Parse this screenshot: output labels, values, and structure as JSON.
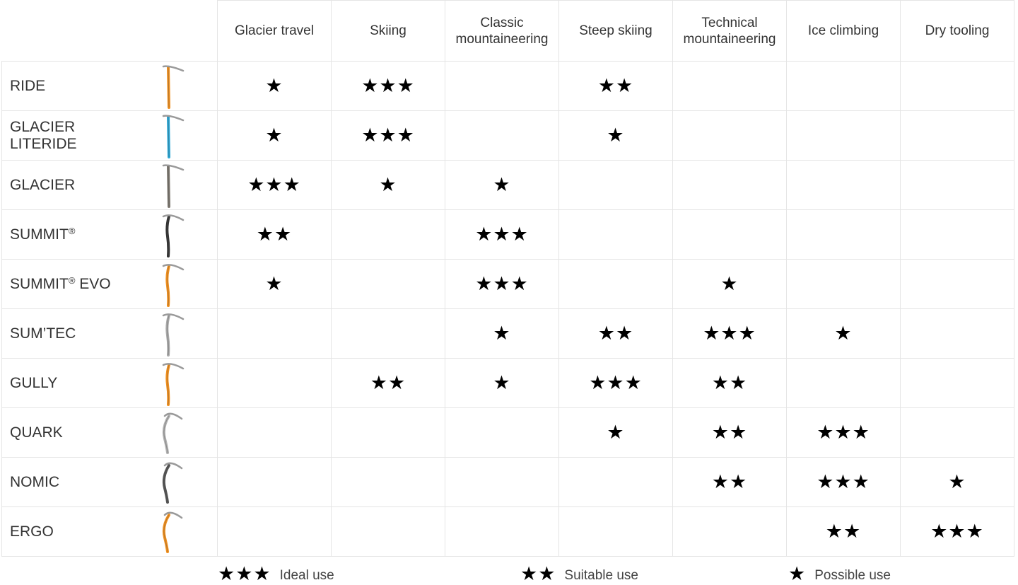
{
  "columns": [
    "Glacier travel",
    "Skiing",
    "Classic\nmountaineering",
    "Steep skiing",
    "Technical\nmountaineering",
    "Ice climbing",
    "Dry tooling"
  ],
  "star_glyph": "★",
  "rows": [
    {
      "name": "RIDE",
      "trademark": "",
      "suffix": "",
      "icon": "ice-axe-ride-icon",
      "shaft": "straight",
      "color": "#f0901f",
      "ratings": [
        1,
        3,
        0,
        2,
        0,
        0,
        0
      ],
      "ratings_text": [
        "★",
        "★★★",
        "",
        "★★",
        "",
        "",
        ""
      ]
    },
    {
      "name": "GLACIER\nLITERIDE",
      "trademark": "",
      "suffix": "",
      "icon": "ice-axe-glacier-literide-icon",
      "shaft": "straight",
      "color": "#2aa7d6",
      "ratings": [
        1,
        3,
        0,
        1,
        0,
        0,
        0
      ],
      "ratings_text": [
        "★",
        "★★★",
        "",
        "★",
        "",
        "",
        ""
      ]
    },
    {
      "name": "GLACIER",
      "trademark": "",
      "suffix": "",
      "icon": "ice-axe-glacier-icon",
      "shaft": "straight",
      "color": "#7d7870",
      "ratings": [
        3,
        1,
        1,
        0,
        0,
        0,
        0
      ],
      "ratings_text": [
        "★★★",
        "★",
        "★",
        "",
        "",
        "",
        ""
      ]
    },
    {
      "name": "SUMMIT",
      "trademark": "®",
      "suffix": "",
      "icon": "ice-axe-summit-icon",
      "shaft": "bent",
      "color": "#333333",
      "ratings": [
        2,
        0,
        3,
        0,
        0,
        0,
        0
      ],
      "ratings_text": [
        "★★",
        "",
        "★★★",
        "",
        "",
        "",
        ""
      ]
    },
    {
      "name": "SUMMIT",
      "trademark": "®",
      "suffix": " EVO",
      "icon": "ice-axe-summit-evo-icon",
      "shaft": "bent",
      "color": "#f0901f",
      "ratings": [
        1,
        0,
        3,
        0,
        1,
        0,
        0
      ],
      "ratings_text": [
        "★",
        "",
        "★★★",
        "",
        "★",
        "",
        ""
      ]
    },
    {
      "name": "SUM’TEC",
      "trademark": "",
      "suffix": "",
      "icon": "ice-axe-sumtec-icon",
      "shaft": "bent",
      "color": "#a9a9a9",
      "ratings": [
        0,
        0,
        1,
        2,
        3,
        1,
        0
      ],
      "ratings_text": [
        "",
        "",
        "★",
        "★★",
        "★★★",
        "★",
        ""
      ]
    },
    {
      "name": "GULLY",
      "trademark": "",
      "suffix": "",
      "icon": "ice-axe-gully-icon",
      "shaft": "bent",
      "color": "#f0901f",
      "ratings": [
        0,
        2,
        1,
        3,
        2,
        0,
        0
      ],
      "ratings_text": [
        "",
        "★★",
        "★",
        "★★★",
        "★★",
        "",
        ""
      ]
    },
    {
      "name": "QUARK",
      "trademark": "",
      "suffix": "",
      "icon": "ice-axe-quark-icon",
      "shaft": "curved",
      "color": "#b0b0b0",
      "ratings": [
        0,
        0,
        0,
        1,
        2,
        3,
        0
      ],
      "ratings_text": [
        "",
        "",
        "",
        "★",
        "★★",
        "★★★",
        ""
      ]
    },
    {
      "name": "NOMIC",
      "trademark": "",
      "suffix": "",
      "icon": "ice-axe-nomic-icon",
      "shaft": "curved",
      "color": "#555555",
      "ratings": [
        0,
        0,
        0,
        0,
        2,
        3,
        1
      ],
      "ratings_text": [
        "",
        "",
        "",
        "",
        "★★",
        "★★★",
        "★"
      ]
    },
    {
      "name": "ERGO",
      "trademark": "",
      "suffix": "",
      "icon": "ice-axe-ergo-icon",
      "shaft": "curved",
      "color": "#f0901f",
      "ratings": [
        0,
        0,
        0,
        0,
        0,
        2,
        3
      ],
      "ratings_text": [
        "",
        "",
        "",
        "",
        "",
        "★★",
        "★★★"
      ]
    }
  ],
  "legend": [
    {
      "stars": 3,
      "stars_text": "★★★",
      "label": "Ideal use"
    },
    {
      "stars": 2,
      "stars_text": "★★",
      "label": "Suitable use"
    },
    {
      "stars": 1,
      "stars_text": "★",
      "label": "Possible use"
    }
  ]
}
